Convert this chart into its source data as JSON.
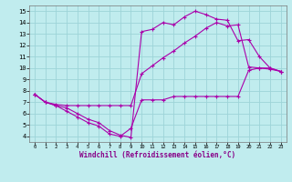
{
  "xlabel": "Windchill (Refroidissement éolien,°C)",
  "bg_color": "#c0ecee",
  "grid_color": "#9dd4d8",
  "line_color": "#aa00aa",
  "xlim_min": -0.5,
  "xlim_max": 23.5,
  "ylim_min": 3.5,
  "ylim_max": 15.5,
  "xticks": [
    0,
    1,
    2,
    3,
    4,
    5,
    6,
    7,
    8,
    9,
    10,
    11,
    12,
    13,
    14,
    15,
    16,
    17,
    18,
    19,
    20,
    21,
    22,
    23
  ],
  "yticks": [
    4,
    5,
    6,
    7,
    8,
    9,
    10,
    11,
    12,
    13,
    14,
    15
  ],
  "curve1_x": [
    0,
    1,
    2,
    3,
    4,
    5,
    6,
    7,
    8,
    9,
    10,
    11,
    12,
    13,
    14,
    15,
    16,
    17,
    18,
    19,
    20,
    21,
    22,
    23
  ],
  "curve1_y": [
    7.7,
    7.0,
    6.8,
    6.7,
    6.7,
    6.7,
    6.7,
    6.7,
    6.7,
    6.7,
    9.5,
    10.2,
    10.9,
    11.5,
    12.2,
    12.8,
    13.5,
    14.0,
    13.7,
    13.8,
    10.1,
    10.0,
    10.0,
    9.7
  ],
  "curve2_x": [
    0,
    1,
    2,
    3,
    4,
    5,
    6,
    7,
    8,
    9,
    10,
    11,
    12,
    13,
    14,
    15,
    16,
    17,
    18,
    19,
    20,
    21,
    22,
    23
  ],
  "curve2_y": [
    7.7,
    7.0,
    6.7,
    6.5,
    6.0,
    5.5,
    5.2,
    4.5,
    4.1,
    3.9,
    13.2,
    13.4,
    14.0,
    13.8,
    14.5,
    15.0,
    14.7,
    14.3,
    14.2,
    12.4,
    12.5,
    11.0,
    10.0,
    9.7
  ],
  "curve3_x": [
    0,
    1,
    2,
    3,
    4,
    5,
    6,
    7,
    8,
    9,
    10,
    11,
    12,
    13,
    14,
    15,
    16,
    17,
    18,
    19,
    20,
    21,
    22,
    23
  ],
  "curve3_y": [
    7.7,
    7.0,
    6.7,
    6.2,
    5.7,
    5.2,
    4.9,
    4.2,
    4.0,
    4.7,
    7.2,
    7.2,
    7.2,
    7.5,
    7.5,
    7.5,
    7.5,
    7.5,
    7.5,
    7.5,
    9.8,
    10.0,
    9.9,
    9.7
  ]
}
